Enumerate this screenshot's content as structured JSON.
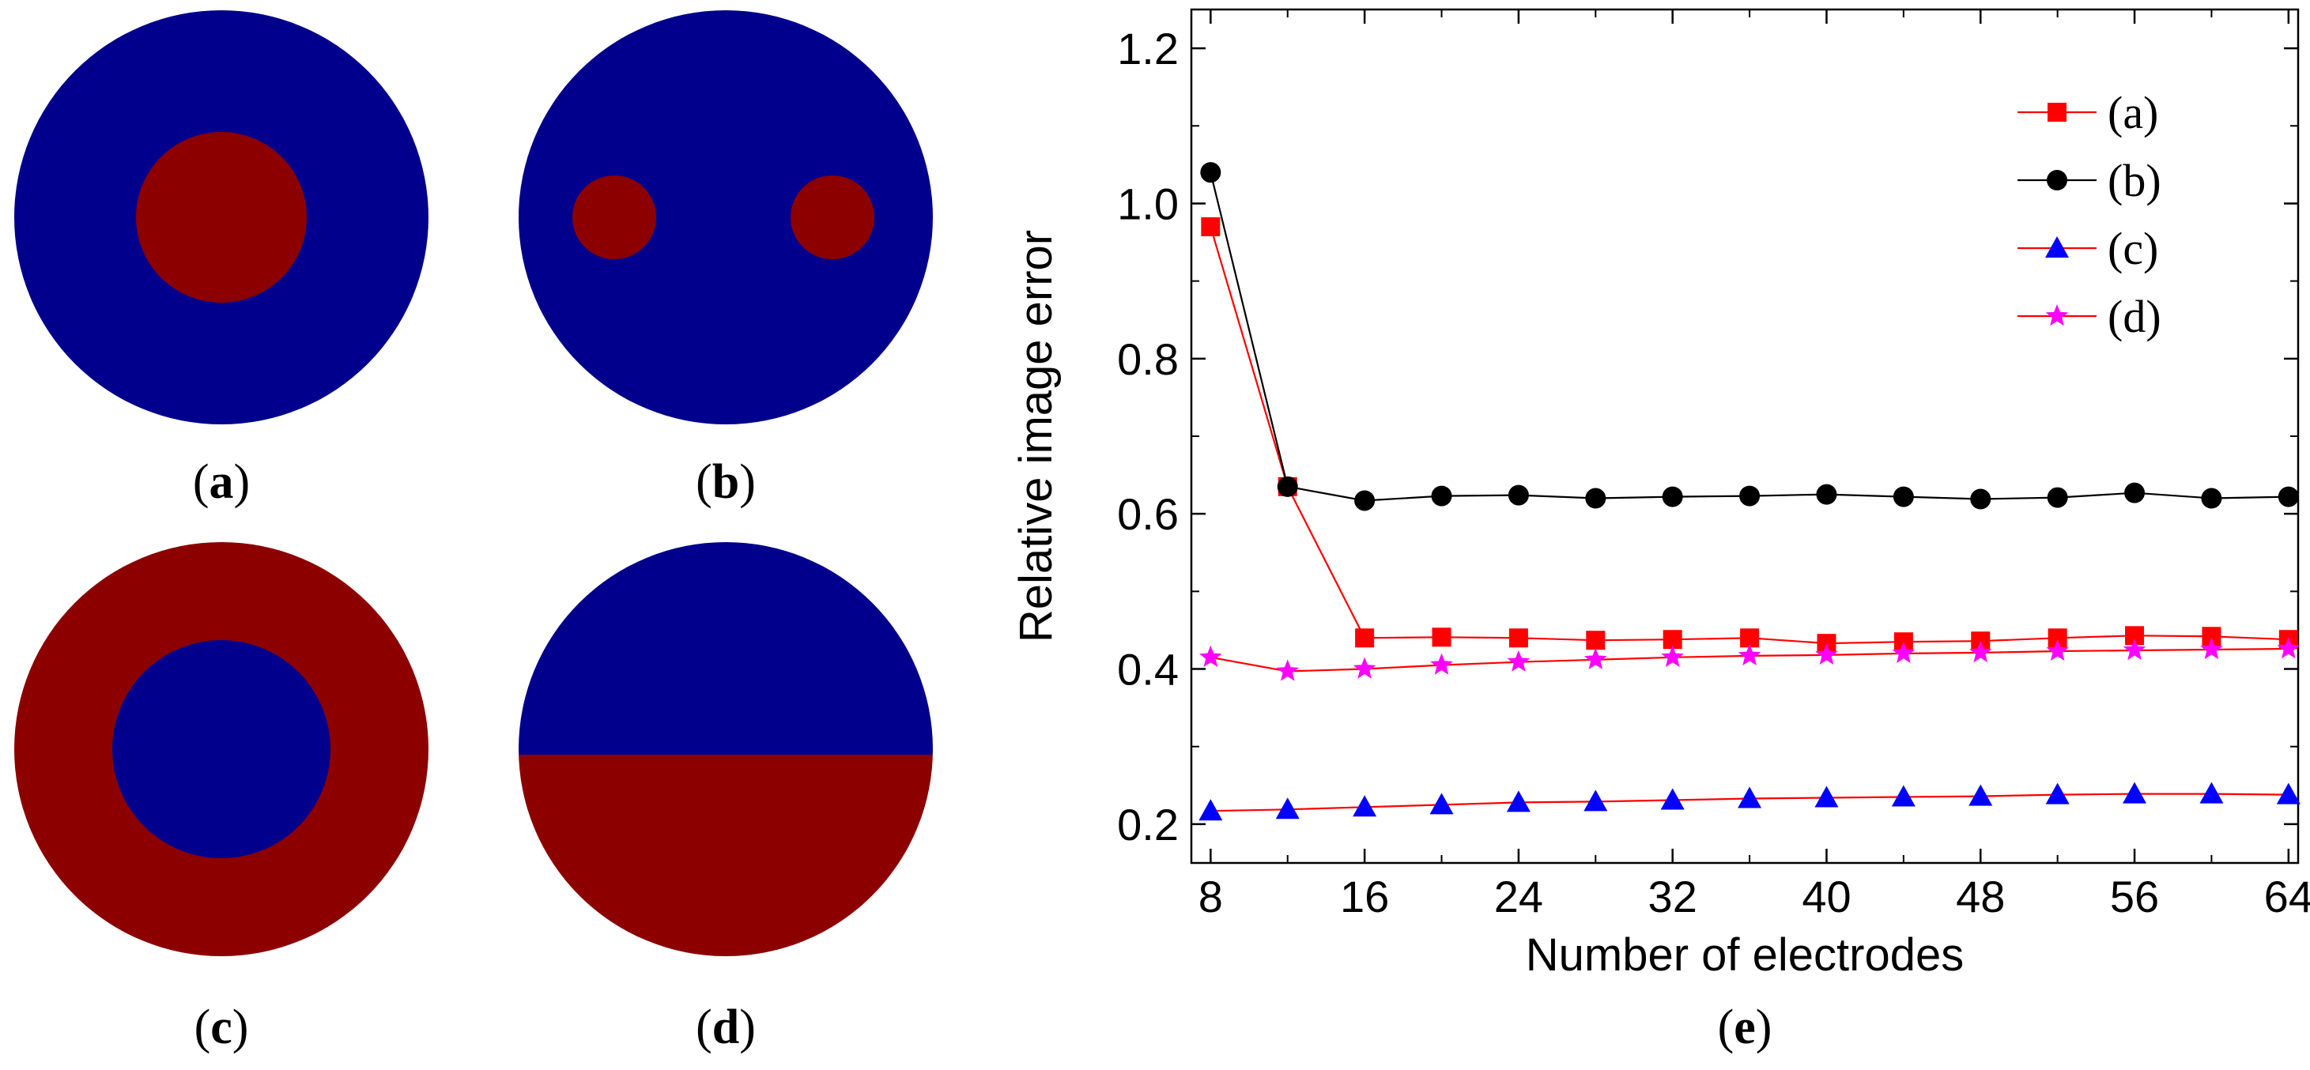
{
  "panels": [
    {
      "id": "a",
      "label_open": "(",
      "label_letter": "a",
      "label_close": ")",
      "pattern": "center-circle",
      "colors": {
        "background": "#00008c",
        "inclusion": "#8c0000"
      }
    },
    {
      "id": "b",
      "label_open": "(",
      "label_letter": "b",
      "label_close": ")",
      "pattern": "two-small-circles",
      "colors": {
        "background": "#00008c",
        "inclusion": "#8c0000"
      }
    },
    {
      "id": "c",
      "label_open": "(",
      "label_letter": "c",
      "label_close": ")",
      "pattern": "ring",
      "colors": {
        "background": "#8c0000",
        "inclusion": "#00008c"
      }
    },
    {
      "id": "d",
      "label_open": "(",
      "label_letter": "d",
      "label_close": ")",
      "pattern": "half-split",
      "colors": {
        "top": "#00008c",
        "bottom": "#8c0000"
      }
    }
  ],
  "chart_panel_label": {
    "open": "(",
    "letter": "e",
    "close": ")"
  },
  "chart_data": {
    "type": "line",
    "title": "",
    "xlabel": "Number of electrodes",
    "ylabel": "Relative image error",
    "xlim": [
      7,
      64.5
    ],
    "ylim": [
      0.15,
      1.25
    ],
    "xticks": [
      8,
      16,
      24,
      32,
      40,
      48,
      56,
      64
    ],
    "xtick_labels": [
      "8",
      "16",
      "24",
      "32",
      "40",
      "48",
      "56",
      "64"
    ],
    "yticks": [
      0.2,
      0.4,
      0.6,
      0.8,
      1.0,
      1.2
    ],
    "ytick_labels": [
      "0.2",
      "0.4",
      "0.6",
      "0.8",
      "1.0",
      "1.2"
    ],
    "x": [
      8,
      12,
      16,
      20,
      24,
      28,
      32,
      36,
      40,
      44,
      48,
      52,
      56,
      60,
      64
    ],
    "legend_position": "top-right",
    "series": [
      {
        "name": "(a)",
        "marker": "square",
        "marker_color": "#ff0000",
        "line_color": "#ff0000",
        "values": [
          0.97,
          0.635,
          0.44,
          0.441,
          0.44,
          0.437,
          0.438,
          0.44,
          0.433,
          0.435,
          0.436,
          0.44,
          0.443,
          0.442,
          0.438
        ]
      },
      {
        "name": "(b)",
        "marker": "circle",
        "marker_color": "#000000",
        "line_color": "#000000",
        "values": [
          1.04,
          0.635,
          0.617,
          0.623,
          0.624,
          0.62,
          0.622,
          0.623,
          0.625,
          0.622,
          0.619,
          0.621,
          0.627,
          0.62,
          0.622
        ]
      },
      {
        "name": "(c)",
        "marker": "triangle",
        "marker_color": "#0000ff",
        "line_color": "#ff0000",
        "values": [
          0.217,
          0.219,
          0.222,
          0.225,
          0.228,
          0.229,
          0.231,
          0.233,
          0.234,
          0.235,
          0.236,
          0.238,
          0.239,
          0.239,
          0.238
        ]
      },
      {
        "name": "(d)",
        "marker": "star",
        "marker_color": "#ff00ff",
        "line_color": "#ff0000",
        "values": [
          0.415,
          0.397,
          0.4,
          0.405,
          0.409,
          0.412,
          0.415,
          0.417,
          0.418,
          0.42,
          0.421,
          0.423,
          0.424,
          0.425,
          0.426
        ]
      }
    ]
  }
}
